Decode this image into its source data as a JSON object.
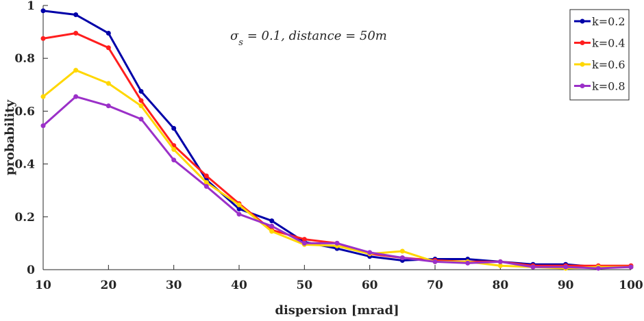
{
  "chart_data": {
    "type": "line",
    "annotation": "σ_s = 0.1, distance = 50m",
    "xlabel": "dispersion [mrad]",
    "ylabel": "probability",
    "xlim": [
      10,
      100
    ],
    "ylim": [
      0,
      1
    ],
    "xticks": [
      10,
      20,
      30,
      40,
      50,
      60,
      70,
      80,
      90,
      100
    ],
    "yticks": [
      0,
      0.2,
      0.4,
      0.6,
      0.8,
      1
    ],
    "ytick_labels": [
      "0",
      "0.2",
      "0.4",
      "0.6",
      "0.8",
      "1"
    ],
    "legend_position": "top-right",
    "x": [
      10,
      15,
      20,
      25,
      30,
      35,
      40,
      45,
      50,
      55,
      60,
      65,
      70,
      75,
      80,
      85,
      90,
      95,
      100
    ],
    "series": [
      {
        "name": "k=0.2",
        "color": "#0000a8",
        "values": [
          0.98,
          0.965,
          0.895,
          0.675,
          0.535,
          0.34,
          0.23,
          0.185,
          0.105,
          0.08,
          0.05,
          0.035,
          0.04,
          0.04,
          0.03,
          0.02,
          0.02,
          0.01,
          0.01
        ]
      },
      {
        "name": "k=0.4",
        "color": "#ff1e1e",
        "values": [
          0.875,
          0.895,
          0.84,
          0.64,
          0.47,
          0.355,
          0.25,
          0.15,
          0.115,
          0.1,
          0.06,
          0.045,
          0.035,
          0.03,
          0.03,
          0.015,
          0.015,
          0.015,
          0.015
        ]
      },
      {
        "name": "k=0.6",
        "color": "#ffd700",
        "values": [
          0.655,
          0.755,
          0.705,
          0.62,
          0.455,
          0.33,
          0.245,
          0.145,
          0.095,
          0.09,
          0.06,
          0.07,
          0.03,
          0.03,
          0.015,
          0.01,
          0.005,
          0.01,
          0.01
        ]
      },
      {
        "name": "k=0.8",
        "color": "#9b30c8",
        "values": [
          0.545,
          0.655,
          0.62,
          0.57,
          0.415,
          0.315,
          0.21,
          0.165,
          0.1,
          0.1,
          0.065,
          0.045,
          0.03,
          0.025,
          0.03,
          0.01,
          0.01,
          0.005,
          0.01
        ]
      }
    ]
  }
}
